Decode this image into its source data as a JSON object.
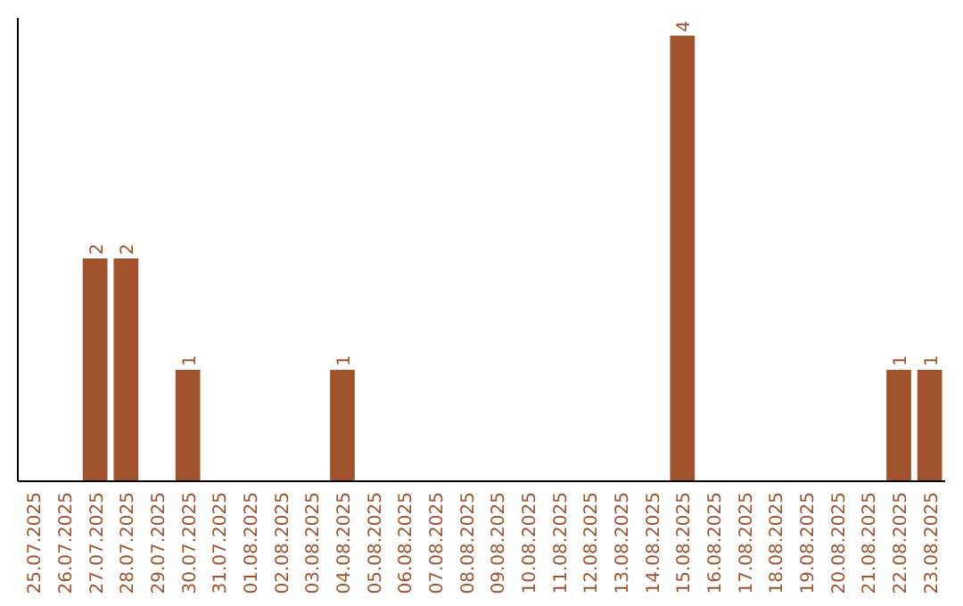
{
  "chart_data": {
    "type": "bar",
    "categories": [
      "25.07.2025",
      "26.07.2025",
      "27.07.2025",
      "28.07.2025",
      "29.07.2025",
      "30.07.2025",
      "31.07.2025",
      "01.08.2025",
      "02.08.2025",
      "03.08.2025",
      "04.08.2025",
      "05.08.2025",
      "06.08.2025",
      "07.08.2025",
      "08.08.2025",
      "09.08.2025",
      "10.08.2025",
      "11.08.2025",
      "12.08.2025",
      "13.08.2025",
      "14.08.2025",
      "15.08.2025",
      "16.08.2025",
      "17.08.2025",
      "18.08.2025",
      "19.08.2025",
      "20.08.2025",
      "21.08.2025",
      "22.08.2025",
      "23.08.2025"
    ],
    "values": [
      0,
      0,
      2,
      2,
      0,
      1,
      0,
      0,
      0,
      0,
      1,
      0,
      0,
      0,
      0,
      0,
      0,
      0,
      0,
      0,
      0,
      4,
      0,
      0,
      0,
      0,
      0,
      0,
      1,
      1
    ],
    "value_labels": [
      null,
      null,
      "2",
      "2",
      null,
      "1",
      null,
      null,
      null,
      null,
      "1",
      null,
      null,
      null,
      null,
      null,
      null,
      null,
      null,
      null,
      null,
      "4",
      null,
      null,
      null,
      null,
      null,
      null,
      "1",
      "1"
    ],
    "color": "#a0522d",
    "grid": false,
    "tick_labels": "x"
  }
}
